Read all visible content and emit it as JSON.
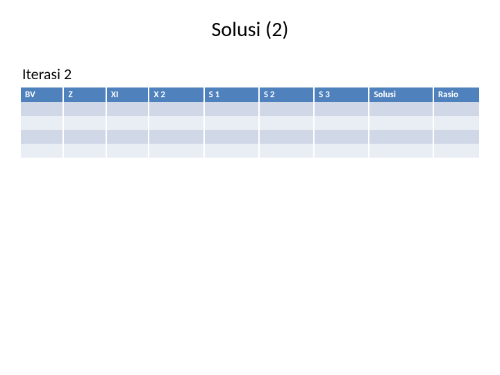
{
  "slide": {
    "title": "Solusi (2)",
    "subtitle": "Iterasi 2"
  },
  "table": {
    "type": "table",
    "header_bg": "#4f81bd",
    "header_fg": "#ffffff",
    "row_odd_bg": "#d0d8e8",
    "row_even_bg": "#e9edf4",
    "border_color": "#ffffff",
    "columns": [
      {
        "key": "bv",
        "label": "BV"
      },
      {
        "key": "z",
        "label": "Z"
      },
      {
        "key": "x1",
        "label": "XI"
      },
      {
        "key": "x2",
        "label": "X 2"
      },
      {
        "key": "s1",
        "label": "S 1"
      },
      {
        "key": "s2",
        "label": "S 2"
      },
      {
        "key": "s3",
        "label": "S 3"
      },
      {
        "key": "solusi",
        "label": "Solusi"
      },
      {
        "key": "rasio",
        "label": "Rasio"
      }
    ],
    "rows": [
      [
        "",
        "",
        "",
        "",
        "",
        "",
        "",
        "",
        ""
      ],
      [
        "",
        "",
        "",
        "",
        "",
        "",
        "",
        "",
        ""
      ],
      [
        "",
        "",
        "",
        "",
        "",
        "",
        "",
        "",
        ""
      ],
      [
        "",
        "",
        "",
        "",
        "",
        "",
        "",
        "",
        ""
      ]
    ]
  }
}
